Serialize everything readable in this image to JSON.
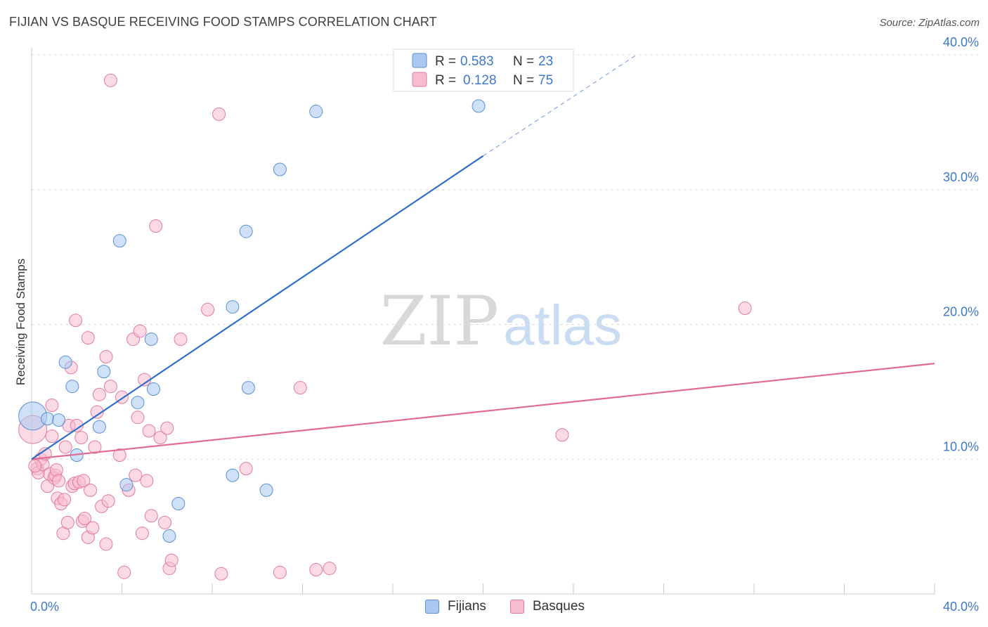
{
  "header": {
    "title": "FIJIAN VS BASQUE RECEIVING FOOD STAMPS CORRELATION CHART",
    "source": "Source: ZipAtlas.com"
  },
  "watermark": {
    "zip": "ZIP",
    "atlas": "atlas"
  },
  "legend": {
    "items": [
      {
        "r_label": "R =",
        "r_value": "0.583",
        "n_label": "N =",
        "n_value": "23",
        "color": "#a8c8f0",
        "stroke": "#5b8ed6"
      },
      {
        "r_label": "R =",
        "r_value": "0.128",
        "n_label": "N =",
        "n_value": "75",
        "color": "#f7bcd0",
        "stroke": "#e07a9f"
      }
    ]
  },
  "bottom_legend": {
    "fijians": "Fijians",
    "basques": "Basques"
  },
  "colors": {
    "fijian_fill": "#a8c8f0",
    "fijian_stroke": "#5b8ed6",
    "fijian_line": "#2f6fcc",
    "basque_fill": "#f7bcd0",
    "basque_stroke": "#e07a9f",
    "basque_line": "#e06c96",
    "tick": "#3d78c9"
  },
  "chart_data": {
    "type": "scatter",
    "title": "FIJIAN VS BASQUE RECEIVING FOOD STAMPS CORRELATION CHART",
    "xlabel": "",
    "ylabel": "Receiving Food Stamps",
    "xlim": [
      0,
      40
    ],
    "ylim": [
      0,
      40
    ],
    "x_tick_labels": [
      "0.0%",
      "40.0%"
    ],
    "y_ticks": [
      10,
      20,
      30,
      40
    ],
    "y_tick_labels": [
      "10.0%",
      "20.0%",
      "30.0%",
      "40.0%"
    ],
    "grid": true,
    "series": [
      {
        "name": "Fijians",
        "r": 0.583,
        "n": 23,
        "trend": {
          "x0": 0,
          "y0": 10.0,
          "x1": 20.0,
          "y1": 32.5,
          "dash_x1": 26.8,
          "dash_y1": 40.0
        },
        "points": [
          [
            0.05,
            13.2
          ],
          [
            1.5,
            17.2
          ],
          [
            0.7,
            13.0
          ],
          [
            1.8,
            15.4
          ],
          [
            3.2,
            16.5
          ],
          [
            2.0,
            10.3
          ],
          [
            3.0,
            12.4
          ],
          [
            3.9,
            26.2
          ],
          [
            4.7,
            14.2
          ],
          [
            5.3,
            18.9
          ],
          [
            5.4,
            15.2
          ],
          [
            4.2,
            8.1
          ],
          [
            6.5,
            6.7
          ],
          [
            6.1,
            4.3
          ],
          [
            8.9,
            8.8
          ],
          [
            8.9,
            21.3
          ],
          [
            9.6,
            15.3
          ],
          [
            9.5,
            26.9
          ],
          [
            10.4,
            7.7
          ],
          [
            11.0,
            31.5
          ],
          [
            12.6,
            35.8
          ],
          [
            19.8,
            36.2
          ],
          [
            1.2,
            12.9
          ]
        ]
      },
      {
        "name": "Basques",
        "r": 0.128,
        "n": 75,
        "trend": {
          "x0": 0,
          "y0": 10.0,
          "x1": 40,
          "y1": 17.1
        },
        "points": [
          [
            0.05,
            12.2
          ],
          [
            0.25,
            9.3
          ],
          [
            0.3,
            9.0
          ],
          [
            0.4,
            10.0
          ],
          [
            0.5,
            9.6
          ],
          [
            0.6,
            10.4
          ],
          [
            0.7,
            8.0
          ],
          [
            0.8,
            8.9
          ],
          [
            0.9,
            14.0
          ],
          [
            0.9,
            11.7
          ],
          [
            1.0,
            8.6
          ],
          [
            1.05,
            8.8
          ],
          [
            1.1,
            9.2
          ],
          [
            1.2,
            8.4
          ],
          [
            1.15,
            7.1
          ],
          [
            1.3,
            6.7
          ],
          [
            1.4,
            4.5
          ],
          [
            1.45,
            7.0
          ],
          [
            1.5,
            10.9
          ],
          [
            1.6,
            5.3
          ],
          [
            1.65,
            12.5
          ],
          [
            1.75,
            16.8
          ],
          [
            1.8,
            8.0
          ],
          [
            1.9,
            8.2
          ],
          [
            1.95,
            20.3
          ],
          [
            2.0,
            12.5
          ],
          [
            2.1,
            8.3
          ],
          [
            2.2,
            11.6
          ],
          [
            2.25,
            5.4
          ],
          [
            2.3,
            8.4
          ],
          [
            2.35,
            5.6
          ],
          [
            2.5,
            19.0
          ],
          [
            2.5,
            4.2
          ],
          [
            2.6,
            7.7
          ],
          [
            2.7,
            4.9
          ],
          [
            2.8,
            10.9
          ],
          [
            2.9,
            13.5
          ],
          [
            3.0,
            14.8
          ],
          [
            3.1,
            6.5
          ],
          [
            3.3,
            17.6
          ],
          [
            3.4,
            6.9
          ],
          [
            3.3,
            3.7
          ],
          [
            3.5,
            15.4
          ],
          [
            3.9,
            10.3
          ],
          [
            4.0,
            14.6
          ],
          [
            4.1,
            1.6
          ],
          [
            4.3,
            7.7
          ],
          [
            4.5,
            18.9
          ],
          [
            4.6,
            8.8
          ],
          [
            4.7,
            13.1
          ],
          [
            4.8,
            19.5
          ],
          [
            4.9,
            4.5
          ],
          [
            5.0,
            15.9
          ],
          [
            5.1,
            8.4
          ],
          [
            5.2,
            12.1
          ],
          [
            5.3,
            5.8
          ],
          [
            5.5,
            27.3
          ],
          [
            5.7,
            11.6
          ],
          [
            5.9,
            5.3
          ],
          [
            6.0,
            12.3
          ],
          [
            6.1,
            1.9
          ],
          [
            6.2,
            2.5
          ],
          [
            6.6,
            18.9
          ],
          [
            7.8,
            21.1
          ],
          [
            8.3,
            35.6
          ],
          [
            8.4,
            1.5
          ],
          [
            9.5,
            9.3
          ],
          [
            11.0,
            1.6
          ],
          [
            11.9,
            15.3
          ],
          [
            12.6,
            1.8
          ],
          [
            13.2,
            1.9
          ],
          [
            3.5,
            38.1
          ],
          [
            23.5,
            11.8
          ],
          [
            31.6,
            21.2
          ],
          [
            0.15,
            9.5
          ]
        ]
      }
    ]
  }
}
